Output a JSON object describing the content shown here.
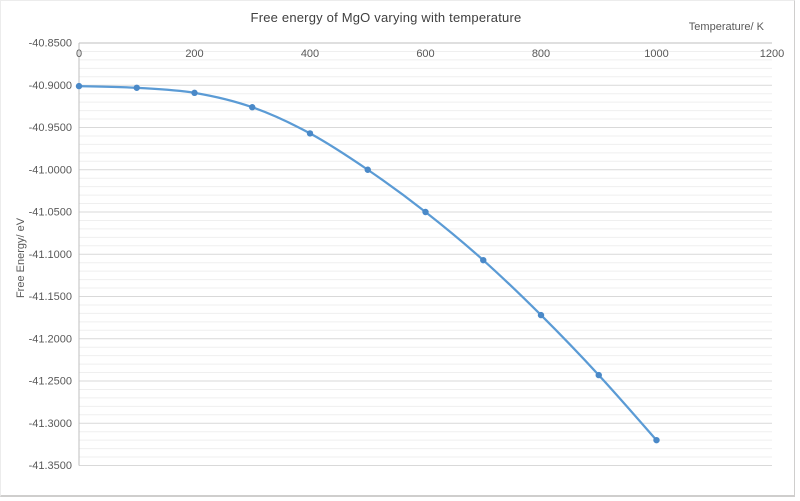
{
  "chart_data": {
    "type": "line",
    "title": "Free energy of MgO varying with temperature",
    "xlabel": "Temperature/ K",
    "ylabel": "Free Energy/ eV",
    "x": [
      0,
      100,
      200,
      300,
      400,
      500,
      600,
      700,
      800,
      900,
      1000
    ],
    "series": [
      {
        "name": "Free energy of MgO",
        "values": [
          -40.901,
          -40.903,
          -40.909,
          -40.926,
          -40.957,
          -41.0,
          -41.05,
          -41.107,
          -41.172,
          -41.243,
          -41.32
        ]
      }
    ],
    "xlim": [
      0,
      1200
    ],
    "ylim": [
      -41.35,
      -40.85
    ],
    "xticks": [
      0,
      200,
      400,
      600,
      800,
      1000,
      1200
    ],
    "xtick_labels": [
      "0",
      "200",
      "400",
      "600",
      "800",
      "1000",
      "1200"
    ],
    "yticks": [
      -40.85,
      -40.9,
      -40.95,
      -41.0,
      -41.05,
      -41.1,
      -41.15,
      -41.2,
      -41.25,
      -41.3,
      -41.35
    ],
    "ytick_labels": [
      "-40.8500",
      "-40.9000",
      "-40.9500",
      "-41.0000",
      "-41.0500",
      "-41.1000",
      "-41.1500",
      "-41.2000",
      "-41.2500",
      "-41.3000",
      "-41.3500"
    ],
    "y_major_step": 0.05,
    "y_minor_step": 0.01,
    "grid": {
      "horizontal_major": true,
      "horizontal_minor": true,
      "vertical": false
    },
    "legend": {
      "visible": false
    },
    "line_style": "smooth",
    "marker": "circle"
  },
  "colors": {
    "series_line": "#5B9BD5",
    "series_marker": "#4A89C8",
    "grid_major": "#D9D9D9",
    "grid_minor": "#EFEFEF",
    "axis_line": "#BFBFBF",
    "tick_text": "#595959",
    "title_text": "#404040",
    "chart_border": "#CFCECD",
    "background": "#FFFFFF"
  }
}
